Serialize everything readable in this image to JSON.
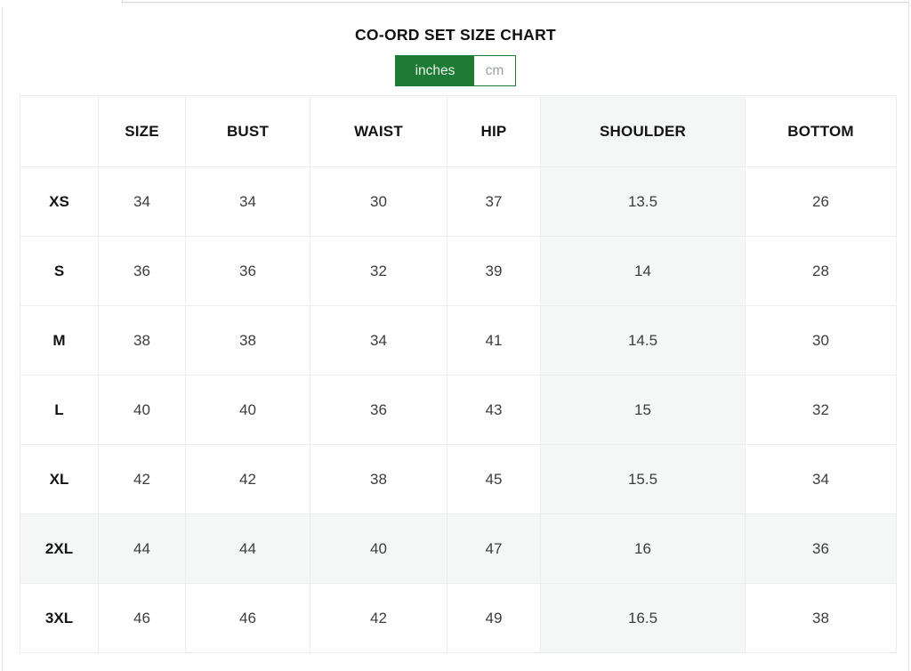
{
  "page": {
    "title": "CO-ORD SET SIZE CHART"
  },
  "colors": {
    "accent_green": "#1e7b36",
    "highlight_gray": "#f5f6f6"
  },
  "unit_toggle": {
    "inches_label": "inches",
    "cm_label": "cm",
    "selected": "inches"
  },
  "size_chart": {
    "columns": [
      "",
      "SIZE",
      "BUST",
      "WAIST",
      "HIP",
      "SHOULDER",
      "BOTTOM"
    ],
    "highlight_col_index": 5,
    "highlight_row_index": 5,
    "rows": [
      {
        "label": "XS",
        "values": [
          "34",
          "34",
          "30",
          "37",
          "13.5",
          "26"
        ]
      },
      {
        "label": "S",
        "values": [
          "36",
          "36",
          "32",
          "39",
          "14",
          "28"
        ]
      },
      {
        "label": "M",
        "values": [
          "38",
          "38",
          "34",
          "41",
          "14.5",
          "30"
        ]
      },
      {
        "label": "L",
        "values": [
          "40",
          "40",
          "36",
          "43",
          "15",
          "32"
        ]
      },
      {
        "label": "XL",
        "values": [
          "42",
          "42",
          "38",
          "45",
          "15.5",
          "34"
        ]
      },
      {
        "label": "2XL",
        "values": [
          "44",
          "44",
          "40",
          "47",
          "16",
          "36"
        ]
      },
      {
        "label": "3XL",
        "values": [
          "46",
          "46",
          "42",
          "49",
          "16.5",
          "38"
        ]
      }
    ]
  }
}
